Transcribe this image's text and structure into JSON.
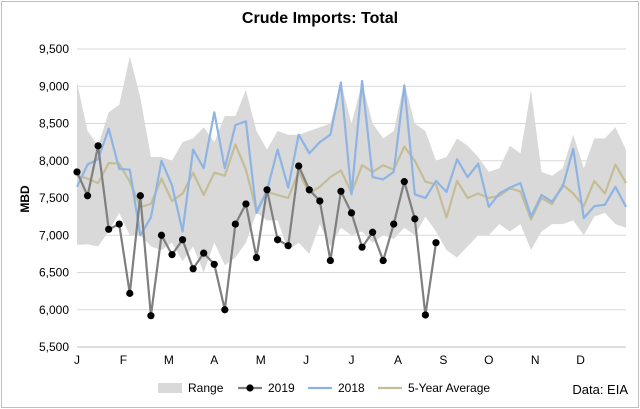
{
  "chart_data": {
    "type": "line",
    "title": "Crude Imports: Total",
    "ylabel": "MBD",
    "xlabel": "",
    "source": "Data: EIA",
    "ylim": [
      5500,
      9500
    ],
    "yticks": [
      5500,
      6000,
      6500,
      7000,
      7500,
      8000,
      8500,
      9000,
      9500
    ],
    "ytick_labels": [
      "5,500",
      "6,000",
      "6,500",
      "7,000",
      "7,500",
      "8,000",
      "8,500",
      "9,000",
      "9,500"
    ],
    "x_week_range": [
      1,
      53
    ],
    "month_labels": [
      "J",
      "F",
      "M",
      "A",
      "M",
      "J",
      "J",
      "A",
      "S",
      "O",
      "N",
      "D"
    ],
    "month_tick_weeks": [
      1,
      5.4,
      9.7,
      14,
      18.4,
      22.7,
      27,
      31.4,
      35.7,
      40,
      44.4,
      48.7
    ],
    "grid": true,
    "legend_position": "bottom",
    "colors": {
      "range": "#d9d9d9",
      "y2019": "#7f7f7f",
      "y2019_marker": "#000000",
      "y2018": "#8eb4e3",
      "avg5": "#c4bd97"
    },
    "series": [
      {
        "name": "Range",
        "type": "band",
        "low": [
          6870,
          6880,
          6850,
          7050,
          7300,
          7000,
          7000,
          6850,
          6800,
          6900,
          6650,
          6850,
          6500,
          6900,
          6600,
          6700,
          6900,
          7300,
          7200,
          7200,
          6800,
          6900,
          6750,
          7150,
          6850,
          7100,
          7000,
          7050,
          6900,
          7000,
          6950,
          7100,
          7000,
          7250,
          7050,
          6800,
          6700,
          6850,
          7000,
          7000,
          7150,
          7050,
          7150,
          6800,
          7050,
          7150,
          7150,
          7200,
          7000,
          7250,
          7300,
          7150,
          7100
        ],
        "high": [
          9050,
          8400,
          8200,
          8650,
          8750,
          9400,
          8850,
          8050,
          8050,
          8000,
          8250,
          8300,
          8450,
          8250,
          8600,
          8600,
          8950,
          8400,
          8150,
          8400,
          8350,
          8350,
          8400,
          8450,
          8500,
          9050,
          8500,
          9050,
          8500,
          8300,
          8400,
          9050,
          8500,
          8400,
          8000,
          8050,
          8300,
          8200,
          8050,
          7850,
          7900,
          8200,
          8100,
          8950,
          7850,
          7800,
          7900,
          8350,
          7900,
          8300,
          8300,
          8450,
          8150
        ]
      },
      {
        "name": "2019",
        "values": [
          7850,
          7530,
          8200,
          7080,
          7150,
          6220,
          7530,
          5920,
          7000,
          6740,
          6940,
          6550,
          6760,
          6610,
          6000,
          7150,
          7420,
          6700,
          7610,
          6940,
          6860,
          7930,
          7610,
          7460,
          6660,
          7590,
          7300,
          6840,
          7040,
          6660,
          7150,
          7720,
          7220,
          5930,
          6900
        ]
      },
      {
        "name": "2018",
        "values": [
          7650,
          7950,
          8020,
          8430,
          7890,
          7880,
          7000,
          7240,
          8000,
          7670,
          7050,
          8150,
          7900,
          8650,
          7900,
          8480,
          8530,
          7300,
          7600,
          8150,
          7640,
          8350,
          8100,
          8250,
          8350,
          9050,
          7550,
          9070,
          7780,
          7750,
          7850,
          9010,
          7550,
          7500,
          7730,
          7580,
          8020,
          7780,
          7960,
          7380,
          7560,
          7640,
          7700,
          7250,
          7540,
          7450,
          7650,
          8160,
          7230,
          7390,
          7410,
          7650,
          7380
        ]
      },
      {
        "name": "5-Year Average",
        "values": [
          7800,
          7760,
          7700,
          7970,
          7960,
          7720,
          7380,
          7420,
          7760,
          7460,
          7560,
          7840,
          7540,
          7840,
          7800,
          8220,
          7880,
          7330,
          7580,
          7540,
          7500,
          7850,
          7560,
          7650,
          7780,
          7870,
          7570,
          7940,
          7850,
          7940,
          7880,
          8190,
          8000,
          7720,
          7680,
          7240,
          7730,
          7500,
          7560,
          7500,
          7530,
          7630,
          7590,
          7210,
          7500,
          7420,
          7680,
          7560,
          7390,
          7730,
          7560,
          7950,
          7700
        ]
      }
    ]
  }
}
